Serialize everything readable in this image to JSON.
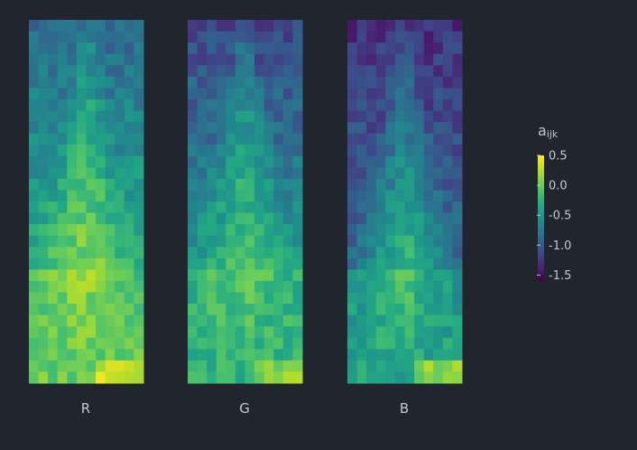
{
  "chart_data": {
    "type": "heatmap",
    "title": "",
    "panels": [
      {
        "name": "R",
        "label": "R"
      },
      {
        "name": "G",
        "label": "G"
      },
      {
        "name": "B",
        "label": "B"
      }
    ],
    "grid": {
      "rows": 32,
      "cols": 12
    },
    "colorscale": "viridis",
    "colorbar": {
      "title_main": "a",
      "title_sub": "ijk",
      "range": [
        -1.6,
        0.5
      ],
      "tick_values": [
        0.5,
        0,
        -0.5,
        -1,
        -1.5
      ],
      "tick_labels": [
        "0.5",
        "0.0",
        "-0.5",
        "-1.0",
        "-1.5"
      ]
    },
    "z_profile": {
      "R": {
        "top_edge": -0.9,
        "top_center": -0.55,
        "mid_edge": -0.25,
        "mid_center": 0.15,
        "bottom": 0.0,
        "bottom_right": 0.35
      },
      "G": {
        "top_edge": -1.15,
        "top_center": -0.75,
        "mid_edge": -0.45,
        "mid_center": 0.0,
        "bottom": -0.25,
        "bottom_right": 0.15
      },
      "B": {
        "top_edge": -1.3,
        "top_center": -1.1,
        "mid_edge": -0.85,
        "mid_center": -0.1,
        "bottom": -0.35,
        "bottom_right": 0.1
      }
    },
    "colors": {
      "background": "#21252e",
      "text": "#c8c8c8"
    }
  }
}
